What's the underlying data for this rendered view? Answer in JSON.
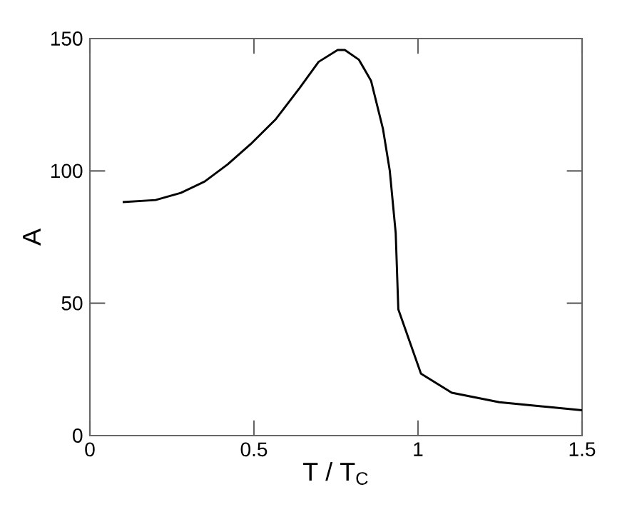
{
  "chart_data": {
    "type": "line",
    "xlabel": "T / T$_{C}$",
    "ylabel": "A",
    "xlim": [
      0,
      1.5
    ],
    "ylim": [
      0,
      150
    ],
    "xticks": [
      0,
      0.5,
      1,
      1.5
    ],
    "yticks": [
      0,
      50,
      100,
      150
    ],
    "marker": "none",
    "line_style": "solid",
    "series": [
      {
        "color": "#000000",
        "x": [
          0.1,
          0.2,
          0.277,
          0.35,
          0.42,
          0.494,
          0.567,
          0.639,
          0.697,
          0.755,
          0.777,
          0.82,
          0.857,
          0.893,
          0.914,
          0.932,
          0.94,
          1.009,
          1.103,
          1.248,
          1.5
        ],
        "values": [
          88.2,
          89,
          91.7,
          96,
          102.5,
          110.6,
          119.6,
          131.3,
          141.2,
          145.7,
          145.7,
          142,
          134,
          116,
          100,
          76.5,
          47.7,
          23.4,
          16.2,
          12.6,
          9.6
        ]
      }
    ]
  }
}
